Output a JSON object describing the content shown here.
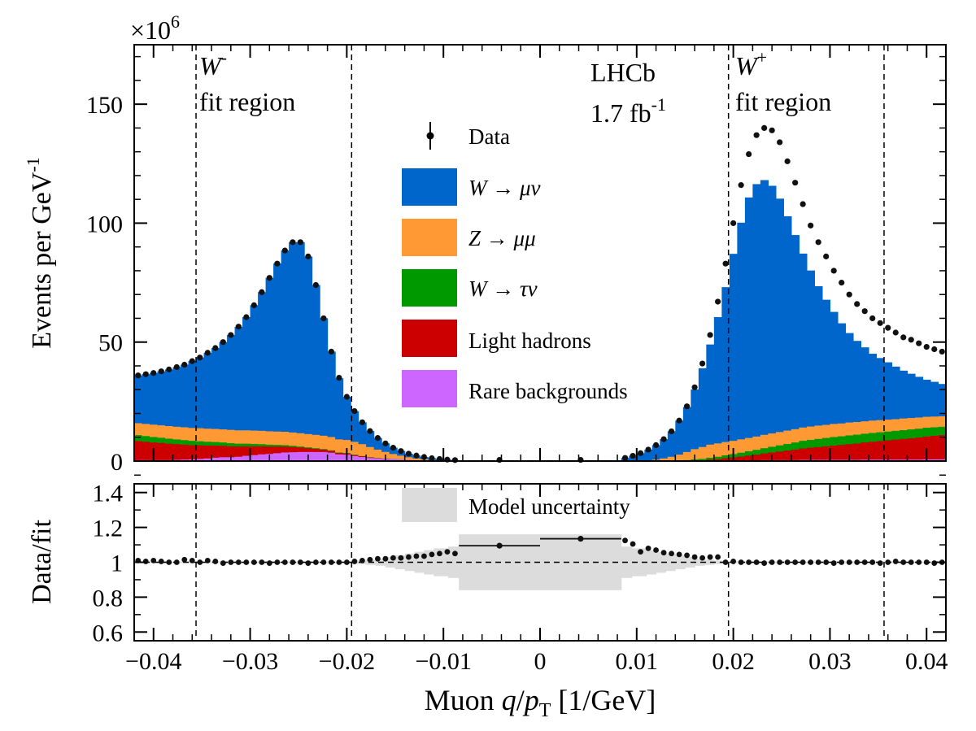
{
  "chart_data": [
    {
      "type": "area",
      "panel": "main",
      "ylabel_main": "Events per GeV",
      "ylabel_sup": "-1",
      "yscale_label": "×10",
      "yscale_exp": "6",
      "xlim": [
        -0.042,
        0.042
      ],
      "ylim": [
        0,
        175
      ],
      "yticks": [
        "0",
        "50",
        "100",
        "150"
      ],
      "experiment": "LHCb",
      "lumi_main": "1.7 fb",
      "lumi_sup": "-1",
      "region_minus": {
        "boson": "W",
        "charge": "-",
        "label": "fit region",
        "x_low": -0.0356,
        "x_high": -0.0195
      },
      "region_plus": {
        "boson": "W",
        "charge": "+",
        "label": "fit region",
        "x_low": 0.0195,
        "x_high": 0.0356
      },
      "legend": [
        {
          "key": "data",
          "label": "Data"
        },
        {
          "key": "wmunu",
          "label": "W → μν"
        },
        {
          "key": "zmumu",
          "label": "Z → μμ"
        },
        {
          "key": "wtaunu",
          "label": "W → τν"
        },
        {
          "key": "lighthad",
          "label": "Light hadrons"
        },
        {
          "key": "rare",
          "label": "Rare backgrounds"
        }
      ],
      "colors": {
        "wmunu": "#0066cc",
        "zmumu": "#ff9933",
        "wtaunu": "#009900",
        "lighthad": "#cc0000",
        "rare": "#cc66ff",
        "uncert": "#dcdcdc"
      },
      "bins_positive": {
        "x_low": [
          0.0084,
          0.0092,
          0.01,
          0.0108,
          0.0116,
          0.0124,
          0.0132,
          0.014,
          0.0148,
          0.0156,
          0.0164,
          0.0172,
          0.018,
          0.0188,
          0.0196,
          0.0204,
          0.0212,
          0.022,
          0.0228,
          0.0236,
          0.0244,
          0.0252,
          0.026,
          0.0268,
          0.0276,
          0.0284,
          0.0292,
          0.03,
          0.0308,
          0.0316,
          0.0324,
          0.0332,
          0.034,
          0.0348,
          0.0356,
          0.0364,
          0.0372,
          0.038,
          0.0388,
          0.0396,
          0.0404,
          0.0412
        ],
        "x_high": [
          0.0092,
          0.01,
          0.0108,
          0.0116,
          0.0124,
          0.0132,
          0.014,
          0.0148,
          0.0156,
          0.0164,
          0.0172,
          0.018,
          0.0188,
          0.0196,
          0.0204,
          0.0212,
          0.022,
          0.0228,
          0.0236,
          0.0244,
          0.0252,
          0.026,
          0.0268,
          0.0276,
          0.0284,
          0.0292,
          0.03,
          0.0308,
          0.0316,
          0.0324,
          0.0332,
          0.034,
          0.0348,
          0.0356,
          0.0364,
          0.0372,
          0.038,
          0.0388,
          0.0396,
          0.0404,
          0.0412,
          0.042
        ],
        "data": [
          1.3,
          2.2,
          3.3,
          4.8,
          6.7,
          9.2,
          12.5,
          17,
          23,
          31,
          41,
          53,
          67,
          83,
          100,
          116,
          129,
          137,
          140,
          139,
          134,
          126,
          117,
          108,
          99,
          92,
          86,
          80,
          75,
          70,
          66,
          63,
          60,
          58,
          56,
          54,
          52,
          51,
          49.5,
          48,
          47,
          46
        ],
        "wmunu": [
          1.3,
          2.1,
          3.1,
          4.4,
          6,
          8,
          10.6,
          14.2,
          18.8,
          25,
          33,
          42,
          53,
          65,
          78.5,
          91,
          101,
          106,
          107,
          104,
          98,
          90,
          81.5,
          73,
          65.5,
          58.5,
          52.5,
          47,
          42,
          37.5,
          34,
          31,
          28,
          26,
          24,
          22,
          20,
          18.5,
          17,
          15.5,
          14.5,
          13.5
        ],
        "zmumu": [
          0,
          0.1,
          0.2,
          0.35,
          0.6,
          1.1,
          1.7,
          2.5,
          3.4,
          4.3,
          5,
          5.5,
          5.6,
          5.6,
          5.6,
          5.6,
          5.6,
          5.6,
          5.6,
          5.6,
          5.6,
          5.6,
          5.6,
          5.6,
          5.6,
          5.6,
          5.5,
          5.5,
          5.4,
          5.4,
          5.3,
          5.2,
          5.2,
          5.1,
          5,
          4.9,
          4.9,
          4.8,
          4.7,
          4.6,
          4.5,
          4.4
        ],
        "wtaunu": [
          0,
          0,
          0,
          0.05,
          0.1,
          0.1,
          0.2,
          0.3,
          0.4,
          0.5,
          0.6,
          0.8,
          1,
          1.2,
          1.4,
          1.6,
          1.8,
          2,
          2.2,
          2.4,
          2.6,
          2.8,
          3,
          3.2,
          3.3,
          3.4,
          3.5,
          3.6,
          3.6,
          3.7,
          3.7,
          3.7,
          3.7,
          3.7,
          3.7,
          3.7,
          3.7,
          3.7,
          3.7,
          3.7,
          3.6,
          3.5
        ],
        "lighthad": [
          0,
          0,
          0,
          0,
          0,
          0,
          0,
          0,
          0.1,
          0.2,
          0.3,
          0.5,
          0.7,
          1,
          1.3,
          1.6,
          2,
          2.4,
          2.8,
          3.2,
          3.6,
          4,
          4.4,
          4.8,
          5.1,
          5.4,
          5.7,
          6,
          6.3,
          6.6,
          6.9,
          7.2,
          7.5,
          7.8,
          8.1,
          8.4,
          8.7,
          9,
          9.3,
          9.6,
          9.9,
          10.2
        ],
        "rare": [
          0,
          0,
          0,
          0,
          0,
          0,
          0,
          0,
          0,
          0.1,
          0.1,
          0.2,
          0.2,
          0.3,
          0.3,
          0.4,
          0.4,
          0.4,
          0.5,
          0.5,
          0.5,
          0.5,
          0.5,
          0.6,
          0.6,
          0.6,
          0.6,
          0.6,
          0.6,
          0.6,
          0.6,
          0.7,
          0.7,
          0.7,
          0.7,
          0.7,
          0.7,
          0.7,
          0.7,
          0.8,
          0.8,
          0.8
        ]
      },
      "bins_negative": {
        "x_low": [
          -0.042,
          -0.0412,
          -0.0404,
          -0.0396,
          -0.0388,
          -0.038,
          -0.0372,
          -0.0364,
          -0.0356,
          -0.0348,
          -0.034,
          -0.0332,
          -0.0324,
          -0.0316,
          -0.0308,
          -0.03,
          -0.0292,
          -0.0284,
          -0.0276,
          -0.0268,
          -0.026,
          -0.0252,
          -0.0244,
          -0.0236,
          -0.0228,
          -0.022,
          -0.0212,
          -0.0204,
          -0.0196,
          -0.0188,
          -0.018,
          -0.0172,
          -0.0164,
          -0.0156,
          -0.0148,
          -0.014,
          -0.0132,
          -0.0124,
          -0.0116,
          -0.0108,
          -0.01,
          -0.0092
        ],
        "x_high": [
          -0.0412,
          -0.0404,
          -0.0396,
          -0.0388,
          -0.038,
          -0.0372,
          -0.0364,
          -0.0356,
          -0.0348,
          -0.034,
          -0.0332,
          -0.0324,
          -0.0316,
          -0.0308,
          -0.03,
          -0.0292,
          -0.0284,
          -0.0276,
          -0.0268,
          -0.026,
          -0.0252,
          -0.0244,
          -0.0236,
          -0.0228,
          -0.022,
          -0.0212,
          -0.0204,
          -0.0196,
          -0.0188,
          -0.018,
          -0.0172,
          -0.0164,
          -0.0156,
          -0.0148,
          -0.014,
          -0.0132,
          -0.0124,
          -0.0116,
          -0.0108,
          -0.01,
          -0.0092,
          -0.0084
        ],
        "data": [
          36,
          36.5,
          37,
          37.7,
          38.5,
          39.5,
          40.5,
          42,
          43.5,
          45.5,
          47.5,
          50,
          53,
          56.5,
          60.5,
          65.5,
          71,
          77,
          83,
          88.5,
          92,
          92,
          86,
          74,
          60,
          46,
          35,
          27,
          21,
          16.3,
          12.6,
          9.7,
          7.4,
          5.6,
          4.2,
          3.1,
          2.3,
          1.7,
          1.2,
          0.85,
          0.6,
          0.4
        ],
        "wmunu": [
          20,
          20.8,
          21.6,
          22.6,
          23.7,
          25,
          26.2,
          28,
          29.6,
          31.8,
          33.9,
          36.6,
          39.8,
          43.4,
          47.5,
          52.6,
          58.2,
          64.4,
          70.5,
          76.1,
          79.9,
          80.2,
          74.5,
          62.9,
          49.3,
          35.8,
          25.6,
          18,
          12.8,
          9.1,
          6.6,
          4.8,
          3.5,
          2.6,
          1.9,
          1.4,
          1.1,
          0.8,
          0.6,
          0.45,
          0.3,
          0.2
        ],
        "zmumu": [
          5,
          5.1,
          5.2,
          5.2,
          5.3,
          5.3,
          5.4,
          5.4,
          5.5,
          5.5,
          5.5,
          5.5,
          5.6,
          5.6,
          5.6,
          5.6,
          5.6,
          5.6,
          5.6,
          5.6,
          5.6,
          5.6,
          5.6,
          5.6,
          5.6,
          5.6,
          5.5,
          5.5,
          5.4,
          5,
          4.3,
          3.5,
          2.8,
          2,
          1.5,
          1.1,
          0.8,
          0.6,
          0.4,
          0.25,
          0.2,
          0.1
        ],
        "wtaunu": [
          2.5,
          2.4,
          2.3,
          2.2,
          2.1,
          2,
          1.9,
          1.8,
          1.7,
          1.6,
          1.5,
          1.4,
          1.3,
          1.2,
          1.1,
          1,
          0.9,
          0.8,
          0.7,
          0.6,
          0.5,
          0.4,
          0.35,
          0.3,
          0.25,
          0.2,
          0.2,
          0.15,
          0.15,
          0.1,
          0.1,
          0.1,
          0.05,
          0.05,
          0.05,
          0,
          0,
          0,
          0,
          0,
          0,
          0
        ],
        "lighthad": [
          8,
          7.7,
          7.4,
          7.2,
          6.9,
          6.6,
          6.3,
          6,
          5.7,
          5.4,
          5.1,
          4.8,
          4.6,
          4.3,
          4,
          3.7,
          3.4,
          3.1,
          2.8,
          2.5,
          2.2,
          1.9,
          1.6,
          1.3,
          1,
          0.8,
          0.6,
          0.5,
          0.4,
          0.3,
          0.2,
          0.1,
          0.1,
          0,
          0,
          0,
          0,
          0,
          0,
          0,
          0,
          0
        ],
        "rare": [
          0.5,
          0.5,
          0.5,
          0.5,
          0.5,
          0.6,
          0.7,
          0.8,
          1,
          1.2,
          1.5,
          1.7,
          1.7,
          1.9,
          2.3,
          2.6,
          2.9,
          3.1,
          3.4,
          3.7,
          3.8,
          3.9,
          3.9,
          3.9,
          3.9,
          3.6,
          2.9,
          2.8,
          2.2,
          1.8,
          1.4,
          1.2,
          1,
          1,
          0.8,
          0.6,
          0.4,
          0.3,
          0.2,
          0.15,
          0.1,
          0.1
        ]
      },
      "central_data_points": [
        {
          "x": -0.0042,
          "y": 0.5
        },
        {
          "x": 0.0042,
          "y": 0.5
        }
      ]
    },
    {
      "type": "scatter",
      "panel": "ratio",
      "ylabel": "Data/fit",
      "xlabel_main": "Muon ",
      "xlabel_q": "q",
      "xlabel_p": "p",
      "xlabel_sub": "T",
      "xlabel_unit": " [1/GeV]",
      "xlim": [
        -0.042,
        0.042
      ],
      "ylim": [
        0.55,
        1.45
      ],
      "yticks": [
        "0.6",
        "0.8",
        "1",
        "1.2",
        "1.4"
      ],
      "xticks": [
        "−0.04",
        "−0.03",
        "−0.02",
        "−0.01",
        "0",
        "0.01",
        "0.02",
        "0.03",
        "0.04"
      ],
      "xtick_values": [
        -0.04,
        -0.03,
        -0.02,
        -0.01,
        0,
        0.01,
        0.02,
        0.03,
        0.04
      ],
      "uncertainty_label": "Model uncertainty",
      "uncertainty_band": [
        {
          "x_low": -0.042,
          "x_high": -0.019,
          "half_width": 0.005
        },
        {
          "x_low": -0.019,
          "x_high": -0.018,
          "half_width": 0.01
        },
        {
          "x_low": -0.018,
          "x_high": -0.017,
          "half_width": 0.015
        },
        {
          "x_low": -0.017,
          "x_high": -0.016,
          "half_width": 0.02
        },
        {
          "x_low": -0.016,
          "x_high": -0.015,
          "half_width": 0.03
        },
        {
          "x_low": -0.015,
          "x_high": -0.014,
          "half_width": 0.04
        },
        {
          "x_low": -0.014,
          "x_high": -0.013,
          "half_width": 0.05
        },
        {
          "x_low": -0.013,
          "x_high": -0.012,
          "half_width": 0.06
        },
        {
          "x_low": -0.012,
          "x_high": -0.011,
          "half_width": 0.07
        },
        {
          "x_low": -0.011,
          "x_high": -0.0095,
          "half_width": 0.08
        },
        {
          "x_low": -0.0095,
          "x_high": -0.0084,
          "half_width": 0.09
        },
        {
          "x_low": -0.0084,
          "x_high": 0,
          "half_width": 0.16
        },
        {
          "x_low": 0,
          "x_high": 0.0084,
          "half_width": 0.16
        },
        {
          "x_low": 0.0084,
          "x_high": 0.0095,
          "half_width": 0.09
        },
        {
          "x_low": 0.0095,
          "x_high": 0.011,
          "half_width": 0.08
        },
        {
          "x_low": 0.011,
          "x_high": 0.012,
          "half_width": 0.07
        },
        {
          "x_low": 0.012,
          "x_high": 0.013,
          "half_width": 0.06
        },
        {
          "x_low": 0.013,
          "x_high": 0.014,
          "half_width": 0.05
        },
        {
          "x_low": 0.014,
          "x_high": 0.015,
          "half_width": 0.04
        },
        {
          "x_low": 0.015,
          "x_high": 0.016,
          "half_width": 0.03
        },
        {
          "x_low": 0.016,
          "x_high": 0.017,
          "half_width": 0.02
        },
        {
          "x_low": 0.017,
          "x_high": 0.018,
          "half_width": 0.015
        },
        {
          "x_low": 0.018,
          "x_high": 0.019,
          "half_width": 0.01
        },
        {
          "x_low": 0.019,
          "x_high": 0.042,
          "half_width": 0.005
        }
      ],
      "ratio_negative": [
        1.01,
        1.005,
        1.01,
        1.005,
        1.0,
        1.0,
        1.015,
        1.01,
        1.0,
        1.01,
        1.005,
        0.995,
        1.0,
        1.0,
        1.0,
        1.0,
        1.0,
        0.995,
        1.0,
        1.0,
        1.0,
        1.0,
        0.995,
        1.0,
        1.0,
        1.0,
        1.0,
        1.0,
        1.005,
        1.01,
        1.015,
        1.02,
        1.02,
        1.025,
        1.025,
        1.03,
        1.035,
        1.035,
        1.045,
        1.05,
        1.06,
        1.05
      ],
      "ratio_positive": [
        1.125,
        1.105,
        1.06,
        1.08,
        1.07,
        1.055,
        1.05,
        1.045,
        1.04,
        1.03,
        1.025,
        1.03,
        1.03,
        1.0,
        1.005,
        1.0,
        1.0,
        1.0,
        0.995,
        1.0,
        1.0,
        1.0,
        1.0,
        1.0,
        1.0,
        1.0,
        1.0,
        0.995,
        1.0,
        1.0,
        1.0,
        1.0,
        1.0,
        0.995,
        1.0,
        1.005,
        1.0,
        1.0,
        1.0,
        1.0,
        0.995,
        1.0
      ],
      "ratio_central": [
        {
          "x_low": -0.0084,
          "x_high": 0,
          "x": -0.0042,
          "y": 1.095,
          "err": 0.01
        },
        {
          "x_low": 0,
          "x_high": 0.0084,
          "x": 0.0042,
          "y": 1.135,
          "err": 0.015
        }
      ]
    }
  ]
}
